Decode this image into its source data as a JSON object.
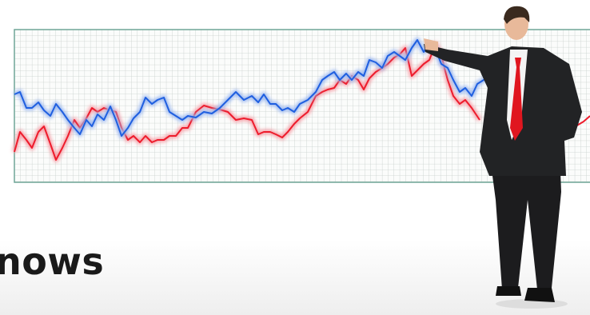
{
  "caption": "nows"
}
